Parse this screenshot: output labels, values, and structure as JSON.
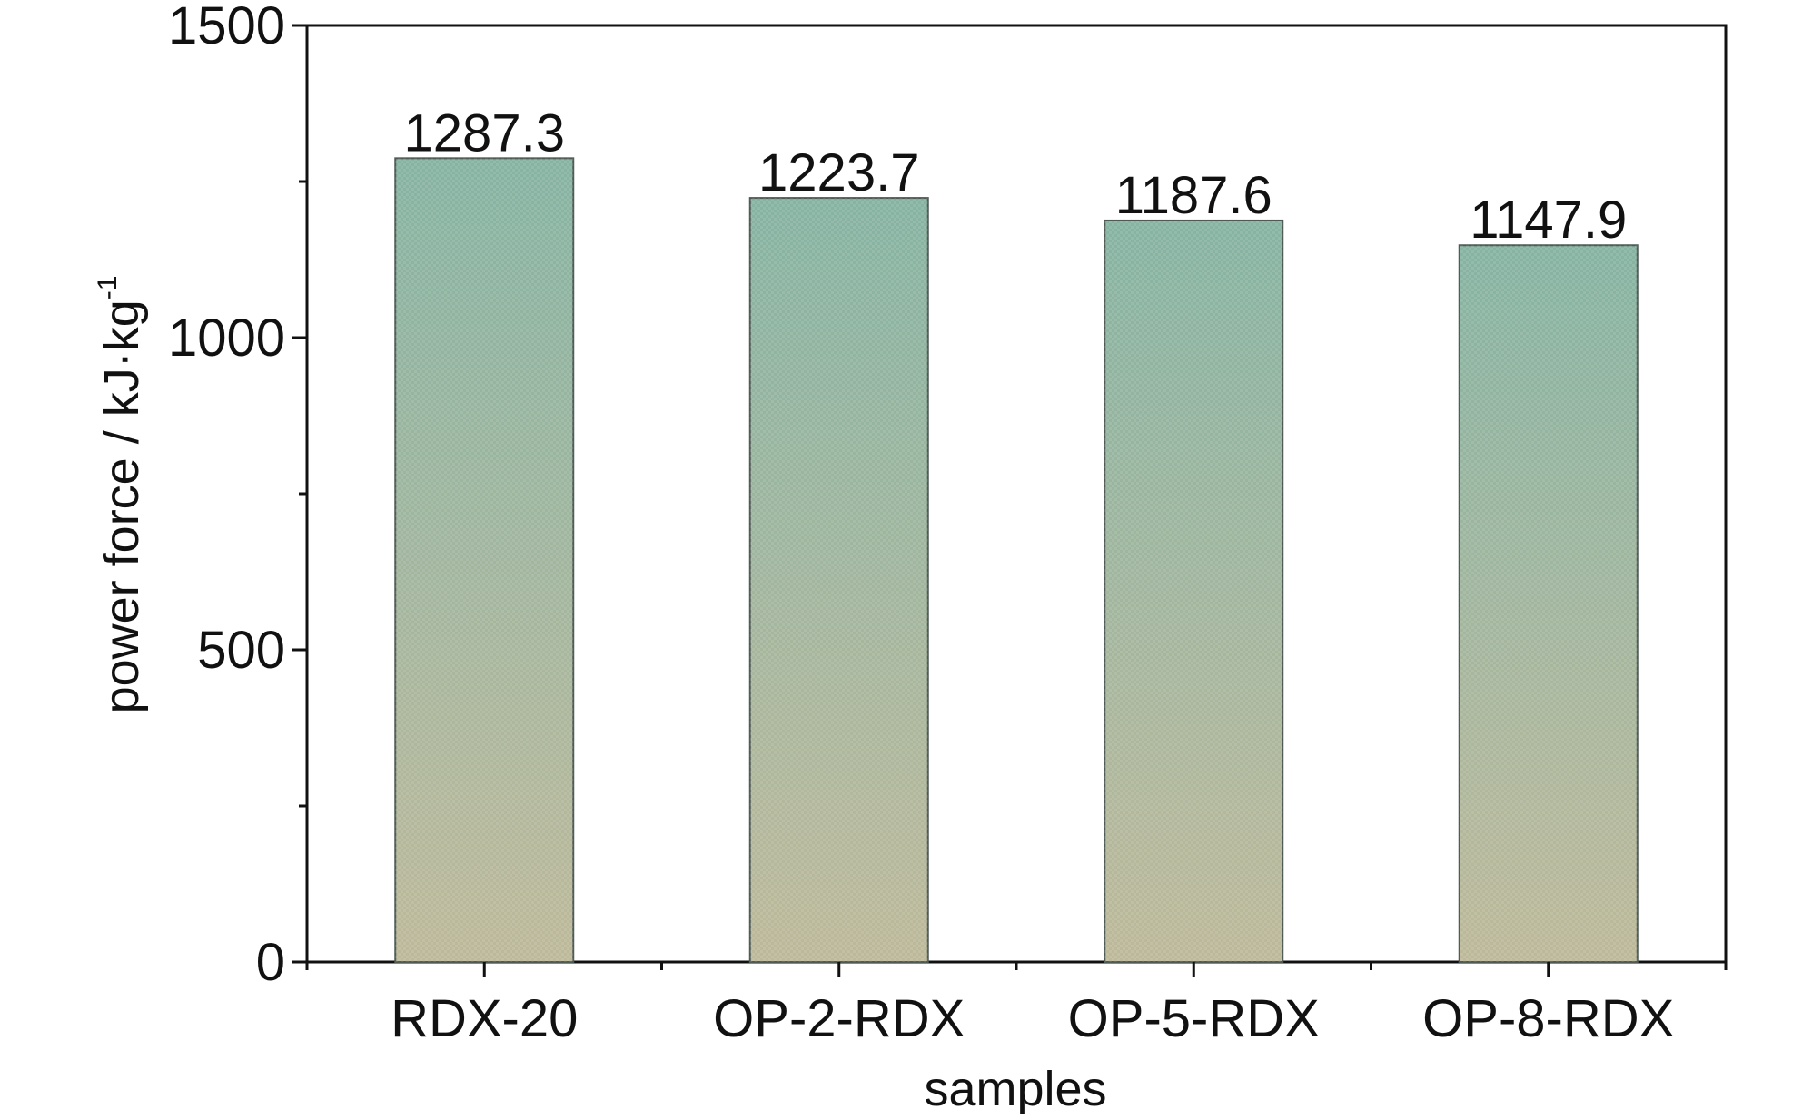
{
  "chart_data": {
    "type": "bar",
    "categories": [
      "RDX-20",
      "OP-2-RDX",
      "OP-5-RDX",
      "OP-8-RDX"
    ],
    "values": [
      1287.3,
      1223.7,
      1187.6,
      1147.9
    ],
    "data_labels": [
      "1287.3",
      "1223.7",
      "1187.6",
      "1147.9"
    ],
    "xlabel": "samples",
    "ylabel": "power force / kJ·kg",
    "ylabel_superscript": "-1",
    "ylim": [
      0,
      1500
    ],
    "yticks": [
      0,
      500,
      1000,
      1500
    ],
    "ytick_labels": [
      "0",
      "500",
      "1000",
      "1500"
    ],
    "grid": false,
    "colors": {
      "bar_top": "#86b3a2",
      "bar_bottom": "#bdb99a",
      "bar_stroke": "#4f5a55",
      "axis": "#111111"
    }
  }
}
